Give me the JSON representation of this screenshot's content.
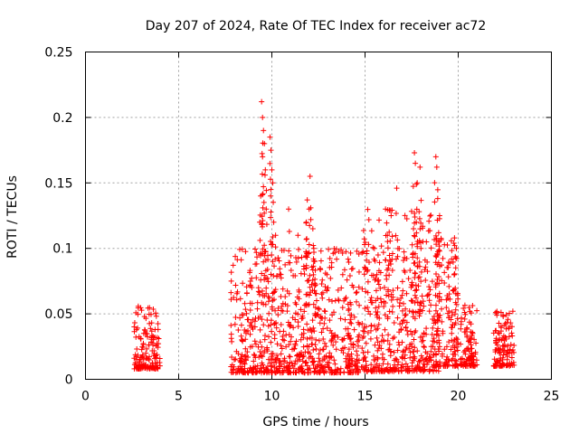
{
  "chart_data": {
    "type": "scatter",
    "title": "Day 207 of 2024, Rate Of TEC Index for receiver ac72",
    "xlabel": "GPS time / hours",
    "ylabel": "ROTI / TECUs",
    "xlim": [
      0,
      25
    ],
    "ylim": [
      0,
      0.25
    ],
    "x_ticks": [
      "0",
      "5",
      "10",
      "15",
      "20",
      "25"
    ],
    "y_ticks": [
      "0",
      "0.05",
      "0.1",
      "0.15",
      "0.2",
      "0.25"
    ],
    "grid": true,
    "marker": "plus",
    "color": "#ff0000",
    "clusters": [
      {
        "x_range": [
          2.6,
          4.0
        ],
        "y_range": [
          0.008,
          0.056
        ]
      },
      {
        "x_range": [
          7.8,
          14.7
        ],
        "y_range": [
          0.005,
          0.1
        ]
      },
      {
        "x_range": [
          14.8,
          19.0
        ],
        "y_range": [
          0.006,
          0.13
        ]
      },
      {
        "x_range": [
          18.7,
          20.0
        ],
        "y_range": [
          0.01,
          0.108
        ]
      },
      {
        "x_range": [
          20.1,
          21.0
        ],
        "y_range": [
          0.01,
          0.057
        ]
      },
      {
        "x_range": [
          21.9,
          23.0
        ],
        "y_range": [
          0.01,
          0.052
        ]
      }
    ],
    "peaks": [
      [
        9.45,
        0.212
      ],
      [
        9.5,
        0.2
      ],
      [
        9.55,
        0.19
      ],
      [
        9.6,
        0.18
      ],
      [
        9.5,
        0.17
      ],
      [
        9.9,
        0.185
      ],
      [
        9.95,
        0.175
      ],
      [
        10.0,
        0.16
      ],
      [
        10.05,
        0.15
      ],
      [
        9.65,
        0.16
      ],
      [
        9.4,
        0.14
      ],
      [
        9.35,
        0.12
      ],
      [
        9.7,
        0.13
      ],
      [
        10.1,
        0.12
      ],
      [
        10.2,
        0.11
      ],
      [
        12.05,
        0.155
      ],
      [
        11.9,
        0.137
      ],
      [
        12.0,
        0.13
      ],
      [
        12.2,
        0.115
      ],
      [
        12.25,
        0.1
      ],
      [
        11.85,
        0.12
      ],
      [
        10.9,
        0.13
      ],
      [
        11.4,
        0.11
      ],
      [
        12.3,
        0.09
      ],
      [
        16.7,
        0.146
      ],
      [
        16.1,
        0.13
      ],
      [
        16.4,
        0.125
      ],
      [
        16.2,
        0.11
      ],
      [
        17.65,
        0.173
      ],
      [
        17.7,
        0.165
      ],
      [
        17.95,
        0.162
      ],
      [
        17.8,
        0.15
      ],
      [
        17.9,
        0.128
      ],
      [
        17.75,
        0.12
      ],
      [
        17.6,
        0.115
      ],
      [
        18.0,
        0.1
      ],
      [
        18.8,
        0.17
      ],
      [
        18.85,
        0.162
      ],
      [
        18.9,
        0.138
      ],
      [
        19.0,
        0.125
      ],
      [
        18.95,
        0.112
      ],
      [
        19.8,
        0.108
      ],
      [
        19.9,
        0.1
      ],
      [
        15.5,
        0.1
      ],
      [
        15.7,
        0.095
      ]
    ]
  }
}
